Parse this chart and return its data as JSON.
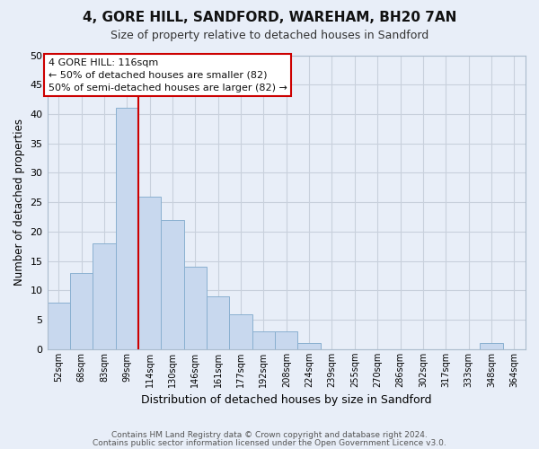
{
  "title": "4, GORE HILL, SANDFORD, WAREHAM, BH20 7AN",
  "subtitle": "Size of property relative to detached houses in Sandford",
  "xlabel": "Distribution of detached houses by size in Sandford",
  "ylabel": "Number of detached properties",
  "bin_labels": [
    "52sqm",
    "68sqm",
    "83sqm",
    "99sqm",
    "114sqm",
    "130sqm",
    "146sqm",
    "161sqm",
    "177sqm",
    "192sqm",
    "208sqm",
    "224sqm",
    "239sqm",
    "255sqm",
    "270sqm",
    "286sqm",
    "302sqm",
    "317sqm",
    "333sqm",
    "348sqm",
    "364sqm"
  ],
  "bar_values": [
    8,
    13,
    18,
    41,
    26,
    22,
    14,
    9,
    6,
    3,
    3,
    1,
    0,
    0,
    0,
    0,
    0,
    0,
    0,
    1,
    0
  ],
  "bar_color": "#c8d8ee",
  "bar_edge_color": "#8ab0d0",
  "vline_x": 3.5,
  "vline_color": "#cc0000",
  "annotation_text": "4 GORE HILL: 116sqm\n← 50% of detached houses are smaller (82)\n50% of semi-detached houses are larger (82) →",
  "annotation_box_color": "#ffffff",
  "annotation_box_edge": "#cc0000",
  "ylim": [
    0,
    50
  ],
  "yticks": [
    0,
    5,
    10,
    15,
    20,
    25,
    30,
    35,
    40,
    45,
    50
  ],
  "footer_line1": "Contains HM Land Registry data © Crown copyright and database right 2024.",
  "footer_line2": "Contains public sector information licensed under the Open Government Licence v3.0.",
  "bg_color": "#e8eef8",
  "plot_bg_color": "#e8eef8",
  "grid_color": "#c8d0dc"
}
